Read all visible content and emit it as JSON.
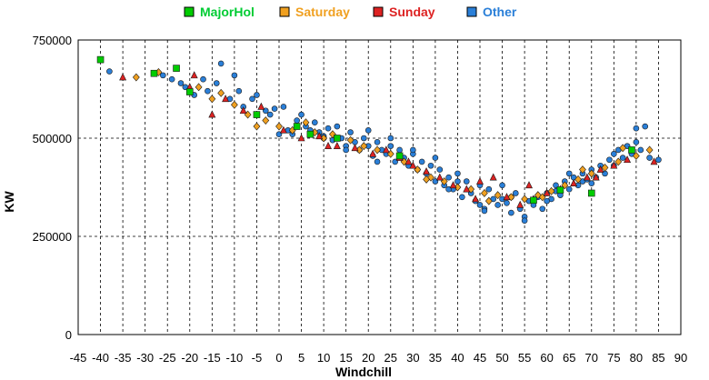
{
  "chart_data": {
    "type": "scatter",
    "title": "",
    "xlabel": "Windchill",
    "ylabel": "KW",
    "xlim": [
      -45,
      90
    ],
    "ylim": [
      0,
      750000
    ],
    "x_ticks": [
      "-45",
      "-40",
      "-35",
      "-30",
      "-25",
      "-20",
      "-15",
      "-10",
      "-5",
      "0",
      "5",
      "10",
      "15",
      "20",
      "25",
      "30",
      "35",
      "40",
      "45",
      "50",
      "55",
      "60",
      "65",
      "70",
      "75",
      "80",
      "85",
      "90"
    ],
    "y_ticks": [
      "0",
      "250000",
      "500000",
      "750000"
    ],
    "grid": true,
    "grid_style": "dashed",
    "legend_position": "top",
    "series": [
      {
        "name": "MajorHol",
        "color": "#00cc00",
        "label_color": "#00cc33",
        "marker": "square",
        "x": [
          -40,
          -28,
          -23,
          -20,
          -5,
          4,
          7,
          13,
          27,
          57,
          63,
          70,
          79
        ],
        "y": [
          700000,
          665000,
          678000,
          618000,
          560000,
          530000,
          510000,
          500000,
          455000,
          342000,
          368000,
          360000,
          470000
        ]
      },
      {
        "name": "Saturday",
        "color": "#f0a020",
        "label_color": "#f0a020",
        "marker": "diamond",
        "x": [
          -32,
          -27,
          -18,
          -13,
          -10,
          -7,
          -5,
          -3,
          0,
          3,
          8,
          10,
          12,
          16,
          19,
          22,
          25,
          28,
          31,
          34,
          37,
          40,
          43,
          46,
          49,
          52,
          55,
          58,
          61,
          64,
          67,
          70,
          73,
          76,
          80,
          83,
          -15,
          6,
          18,
          33,
          47,
          59,
          68,
          77
        ],
        "y": [
          655000,
          668000,
          630000,
          615000,
          585000,
          560000,
          530000,
          545000,
          530000,
          520000,
          515000,
          500000,
          510000,
          495000,
          480000,
          470000,
          460000,
          440000,
          420000,
          400000,
          390000,
          375000,
          370000,
          360000,
          355000,
          350000,
          345000,
          355000,
          365000,
          380000,
          395000,
          410000,
          425000,
          440000,
          455000,
          470000,
          600000,
          540000,
          470000,
          395000,
          340000,
          350000,
          420000,
          475000
        ]
      },
      {
        "name": "Sunday",
        "color": "#dd2222",
        "label_color": "#dd2222",
        "marker": "triangle",
        "x": [
          -35,
          -19,
          -15,
          -12,
          -8,
          -4,
          1,
          5,
          9,
          13,
          17,
          21,
          24,
          27,
          30,
          33,
          36,
          39,
          42,
          45,
          48,
          51,
          54,
          57,
          60,
          63,
          66,
          69,
          72,
          75,
          78,
          84,
          -20,
          11,
          29,
          44,
          56,
          71
        ],
        "y": [
          655000,
          660000,
          560000,
          600000,
          570000,
          580000,
          520000,
          500000,
          505000,
          480000,
          475000,
          460000,
          470000,
          450000,
          430000,
          415000,
          400000,
          380000,
          370000,
          390000,
          400000,
          350000,
          330000,
          345000,
          360000,
          370000,
          385000,
          400000,
          420000,
          430000,
          445000,
          440000,
          630000,
          480000,
          440000,
          345000,
          380000,
          400000
        ]
      },
      {
        "name": "Other",
        "color": "#2a7fd8",
        "label_color": "#2a7fd8",
        "marker": "circle",
        "x": [
          -40,
          -38,
          -26,
          -24,
          -22,
          -21,
          -19,
          -17,
          -16,
          -14,
          -13,
          -11,
          -10,
          -9,
          -8,
          -6,
          -5,
          -3,
          -2,
          -1,
          0,
          1,
          2,
          3,
          4,
          6,
          7,
          8,
          9,
          10,
          11,
          12,
          13,
          14,
          15,
          16,
          17,
          18,
          19,
          20,
          21,
          22,
          23,
          24,
          25,
          26,
          27,
          28,
          29,
          30,
          31,
          32,
          33,
          34,
          35,
          36,
          37,
          38,
          39,
          40,
          41,
          42,
          43,
          44,
          45,
          46,
          47,
          48,
          49,
          50,
          51,
          52,
          53,
          54,
          55,
          56,
          57,
          58,
          59,
          60,
          61,
          62,
          63,
          64,
          65,
          66,
          67,
          68,
          69,
          70,
          71,
          72,
          73,
          74,
          75,
          76,
          77,
          78,
          79,
          80,
          81,
          82,
          83,
          85,
          5,
          15,
          25,
          35,
          45,
          55,
          65,
          75,
          20,
          30,
          40,
          50,
          60,
          70,
          80,
          10,
          22,
          38,
          52,
          62,
          68,
          46
        ],
        "y": [
          700000,
          670000,
          660000,
          650000,
          640000,
          630000,
          610000,
          650000,
          620000,
          640000,
          690000,
          600000,
          660000,
          620000,
          580000,
          600000,
          610000,
          570000,
          560000,
          575000,
          510000,
          580000,
          520000,
          510000,
          545000,
          530000,
          520000,
          540000,
          515000,
          505000,
          525000,
          495000,
          530000,
          500000,
          480000,
          515000,
          490000,
          470000,
          500000,
          480000,
          455000,
          490000,
          470000,
          460000,
          480000,
          440000,
          470000,
          450000,
          430000,
          460000,
          420000,
          440000,
          410000,
          430000,
          390000,
          420000,
          380000,
          400000,
          370000,
          410000,
          350000,
          390000,
          360000,
          340000,
          380000,
          320000,
          370000,
          345000,
          330000,
          380000,
          335000,
          310000,
          360000,
          320000,
          300000,
          340000,
          330000,
          350000,
          320000,
          360000,
          345000,
          380000,
          355000,
          390000,
          370000,
          400000,
          380000,
          410000,
          395000,
          420000,
          400000,
          430000,
          410000,
          445000,
          430000,
          470000,
          450000,
          480000,
          460000,
          525000,
          470000,
          530000,
          450000,
          445000,
          560000,
          470000,
          500000,
          450000,
          330000,
          290000,
          410000,
          460000,
          520000,
          470000,
          390000,
          345000,
          340000,
          385000,
          490000,
          500000,
          440000,
          370000,
          350000,
          365000,
          390000,
          315000
        ]
      }
    ]
  }
}
